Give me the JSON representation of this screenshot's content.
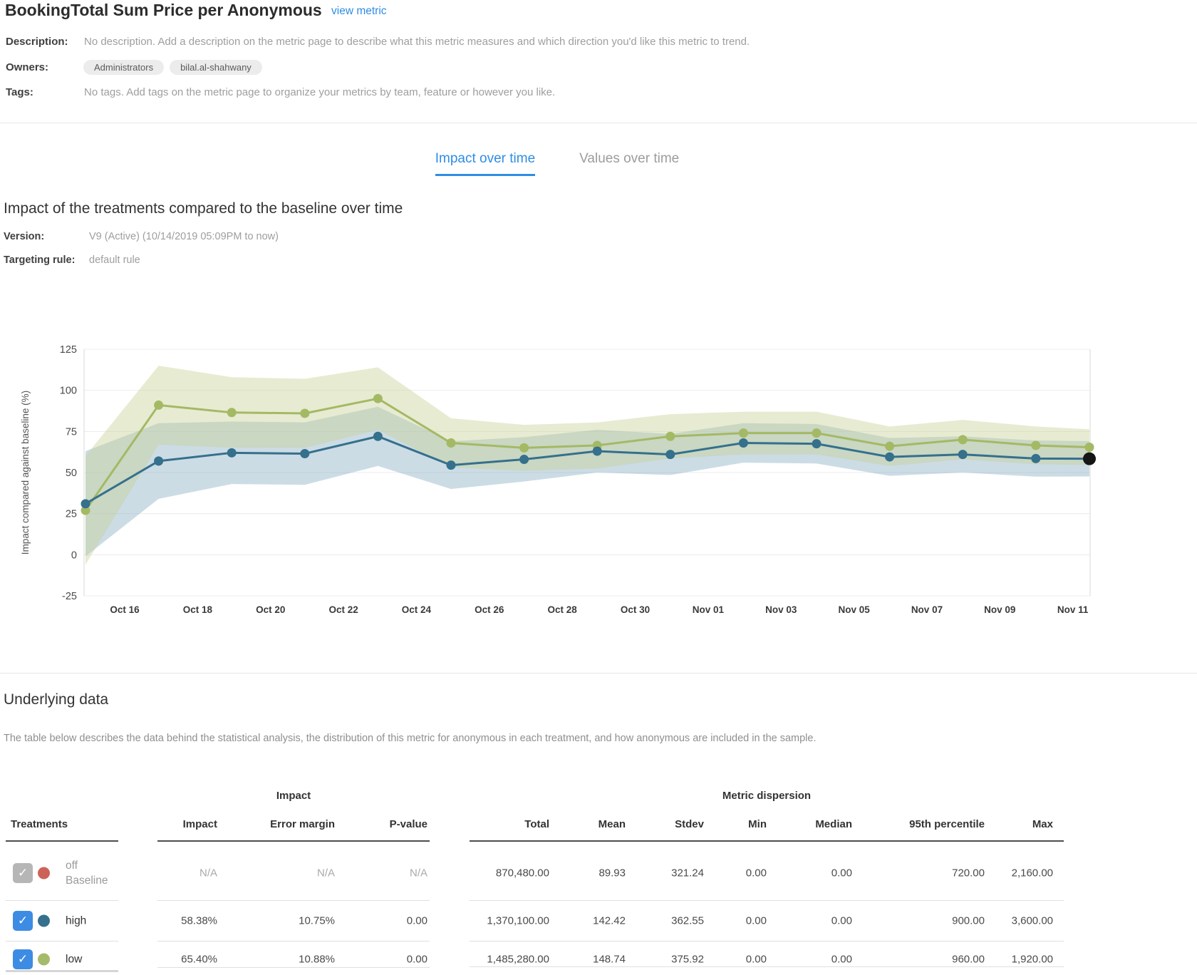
{
  "header": {
    "title": "BookingTotal Sum Price per Anonymous",
    "view_metric_label": "view metric"
  },
  "meta": {
    "description_label": "Description:",
    "description": "No description. Add a description on the metric page to describe what this metric measures and which direction you'd like this metric to trend.",
    "owners_label": "Owners:",
    "owners": [
      "Administrators",
      "bilal.al-shahwany"
    ],
    "tags_label": "Tags:",
    "tags_empty": "No tags. Add tags on the metric page to organize your metrics by team, feature or however you like."
  },
  "tabs": [
    {
      "label": "Impact over time",
      "active": true
    },
    {
      "label": "Values over time",
      "active": false
    }
  ],
  "impact_section": {
    "heading": "Impact of the treatments compared to the baseline over time",
    "version_label": "Version:",
    "version": "V9 (Active) (10/14/2019 05:09PM to now)",
    "targeting_label": "Targeting rule:",
    "targeting_rule": "default rule"
  },
  "chart_data": {
    "type": "line",
    "ylabel": "Impact compared against baseline (%)",
    "ylim": [
      -25,
      125
    ],
    "yticks": [
      125,
      100,
      75,
      50,
      25,
      0,
      -25
    ],
    "grid": true,
    "x_tick_labels": [
      "Oct 16",
      "Oct 18",
      "Oct 20",
      "Oct 22",
      "Oct 24",
      "Oct 26",
      "Oct 28",
      "Oct 30",
      "Nov 01",
      "Nov 03",
      "Nov 05",
      "Nov 07",
      "Nov 09",
      "Nov 11"
    ],
    "x": [
      "Oct 15",
      "Oct 17",
      "Oct 19",
      "Oct 21",
      "Oct 23",
      "Oct 25",
      "Oct 27",
      "Oct 29",
      "Oct 31",
      "Nov 02",
      "Nov 04",
      "Nov 06",
      "Nov 08",
      "Nov 10",
      "Nov 11"
    ],
    "series": [
      {
        "name": "high",
        "color": "#35708c",
        "band_color": "#85abc1",
        "values": [
          31,
          57,
          62,
          61.5,
          72,
          54.5,
          58,
          63,
          61,
          68,
          67.5,
          59.5,
          61,
          58.5,
          58.38
        ],
        "err": [
          32,
          23,
          19,
          19,
          18,
          14.5,
          13.5,
          13,
          12.5,
          12,
          12,
          11.5,
          11,
          11,
          10.75
        ]
      },
      {
        "name": "low",
        "color": "#a4b964",
        "band_color": "#c6cf94",
        "values": [
          27,
          91,
          86.5,
          86,
          95,
          68,
          65,
          66.5,
          72,
          74,
          74,
          66,
          70,
          66.5,
          65.4
        ],
        "err": [
          33,
          24,
          21.5,
          21,
          19,
          15,
          14,
          14,
          13.5,
          13,
          13,
          12,
          12,
          11.5,
          10.88
        ]
      }
    ],
    "highlight": {
      "series": "high",
      "point": 14
    },
    "highlight_color": "#151515",
    "legend_position": "none"
  },
  "underlying": {
    "heading": "Underlying data",
    "description": "The table below describes the data behind the statistical analysis, the distribution of this metric for anonymous in each treatment, and how anonymous are included in the sample."
  },
  "table": {
    "treatments_label": "Treatments",
    "groups": [
      {
        "label": "Impact"
      },
      {
        "label": "Metric dispersion"
      }
    ],
    "columns": [
      "Impact",
      "Error margin",
      "P-value",
      "Total",
      "Mean",
      "Stdev",
      "Min",
      "Median",
      "95th percentile",
      "Max"
    ],
    "rows": [
      {
        "name": "off",
        "sub": "Baseline",
        "checked": true,
        "disabled": true,
        "dot_color": "#cd6358",
        "impact": "N/A",
        "error_margin": "N/A",
        "p_value": "N/A",
        "total": "870,480.00",
        "mean": "89.93",
        "stdev": "321.24",
        "min": "0.00",
        "median": "0.00",
        "p95": "720.00",
        "max": "2,160.00"
      },
      {
        "name": "high",
        "checked": true,
        "disabled": false,
        "dot_color": "#35708c",
        "impact": "58.38%",
        "error_margin": "10.75%",
        "p_value": "0.00",
        "total": "1,370,100.00",
        "mean": "142.42",
        "stdev": "362.55",
        "min": "0.00",
        "median": "0.00",
        "p95": "900.00",
        "max": "3,600.00"
      },
      {
        "name": "low",
        "checked": true,
        "disabled": false,
        "dot_color": "#a5bb6a",
        "impact": "65.40%",
        "error_margin": "10.88%",
        "p_value": "0.00",
        "total": "1,485,280.00",
        "mean": "148.74",
        "stdev": "375.92",
        "min": "0.00",
        "median": "0.00",
        "p95": "960.00",
        "max": "1,920.00"
      }
    ]
  },
  "icons": {
    "check": "✓"
  },
  "colors": {
    "accent_blue": "#2e8de4",
    "checkbox_checked": "#3d8ce4",
    "checkbox_disabled": "#b6b6b6",
    "series_high": "#35708c",
    "series_low": "#a4b964",
    "dot_off": "#cd6358",
    "highlight_dot": "#151515"
  }
}
